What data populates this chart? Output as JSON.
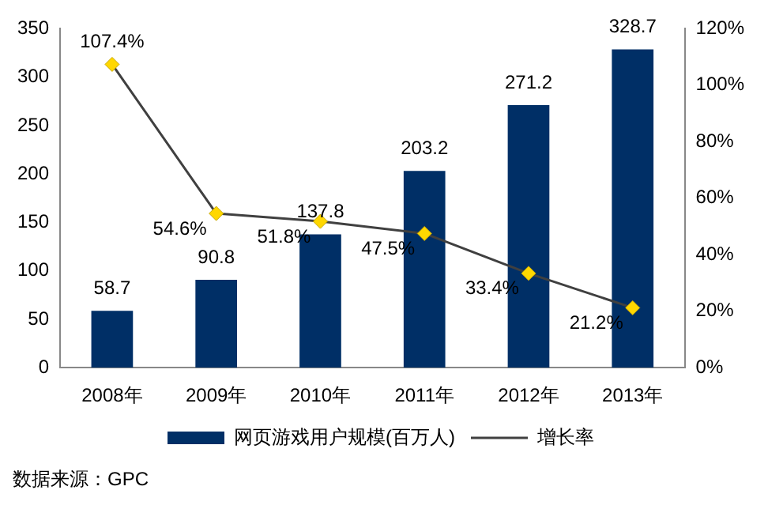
{
  "chart_data": {
    "type": "bar",
    "categories": [
      "2008年",
      "2009年",
      "2010年",
      "2011年",
      "2012年",
      "2013年"
    ],
    "series": [
      {
        "name": "网页游戏用户规模(百万人)",
        "color": "#002f66",
        "values": [
          58.7,
          90.8,
          137.8,
          203.2,
          271.2,
          328.7
        ],
        "value_labels": [
          "58.7",
          "90.8",
          "137.8",
          "203.2",
          "271.2",
          "328.7"
        ]
      },
      {
        "name": "增长率",
        "type": "line",
        "axis": "y2",
        "color": "#ffd700",
        "values": [
          107.4,
          54.6,
          51.8,
          47.5,
          33.4,
          21.2
        ],
        "value_labels": [
          "107.4%",
          "54.6%",
          "51.8%",
          "47.5%",
          "33.4%",
          "21.2%"
        ]
      }
    ],
    "ylim": [
      0,
      350
    ],
    "yticks": [
      0,
      50,
      100,
      150,
      200,
      250,
      300,
      350
    ],
    "y2lim": [
      0,
      120
    ],
    "y2ticks": [
      {
        "value": 0,
        "label": "0%"
      },
      {
        "value": 20,
        "label": "20%"
      },
      {
        "value": 40,
        "label": "40%"
      },
      {
        "value": 60,
        "label": "60%"
      },
      {
        "value": 80,
        "label": "80%"
      },
      {
        "value": 100,
        "label": "100%"
      },
      {
        "value": 120,
        "label": "120%"
      }
    ],
    "grid": false,
    "legend": "bottom",
    "marker": "diamond",
    "line_style": "solid",
    "annotations": [
      "数据来源：GPC"
    ]
  }
}
